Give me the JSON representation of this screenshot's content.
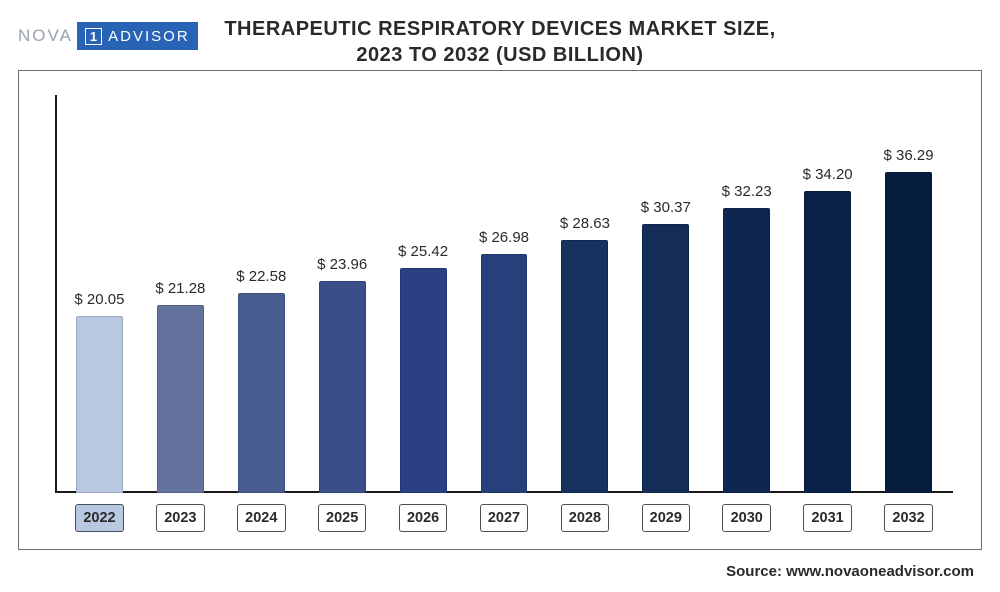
{
  "logo": {
    "left": "NOVA",
    "one": "1",
    "right": "ADVISOR"
  },
  "title_line1": "THERAPEUTIC RESPIRATORY DEVICES MARKET SIZE,",
  "title_line2": "2023 TO 2032 (USD BILLION)",
  "source_label": "Source: www.novaoneadvisor.com",
  "chart": {
    "type": "bar",
    "ylim_max": 45,
    "value_prefix": "$ ",
    "value_fontsize": 15,
    "xlabel_fontsize": 14.5,
    "bar_width_pct": 58,
    "background_color": "#ffffff",
    "axis_color": "#1a1a1a",
    "categories": [
      "2022",
      "2023",
      "2024",
      "2025",
      "2026",
      "2027",
      "2028",
      "2029",
      "2030",
      "2031",
      "2032"
    ],
    "values": [
      20.05,
      21.28,
      22.58,
      23.96,
      25.42,
      26.98,
      28.63,
      30.37,
      32.23,
      34.2,
      36.29
    ],
    "value_labels": [
      "$ 20.05",
      "$ 21.28",
      "$ 22.58",
      "$ 23.96",
      "$ 25.42",
      "$ 26.98",
      "$ 28.63",
      "$ 30.37",
      "$ 32.23",
      "$ 34.20",
      "$ 36.29"
    ],
    "bar_colors": [
      "#b8c8e0",
      "#62729d",
      "#4a5d91",
      "#3a4e89",
      "#2b4083",
      "#25407a",
      "#17325f",
      "#132c58",
      "#0f2750",
      "#0b2248",
      "#071d40"
    ],
    "xlabel_border_color": "#4a4f58",
    "first_xlabel_bg": "#b8c8e0"
  }
}
